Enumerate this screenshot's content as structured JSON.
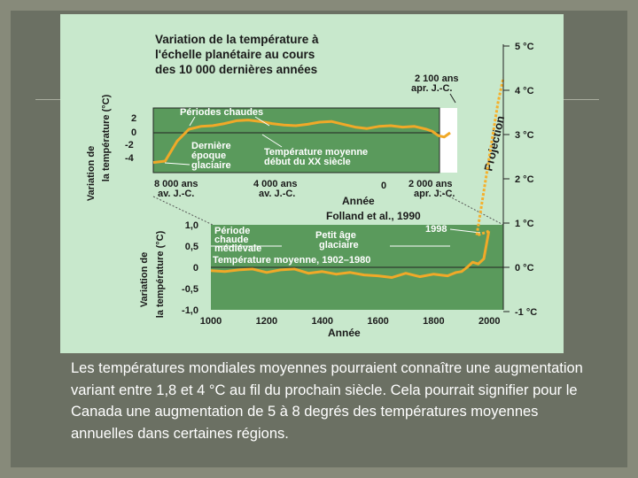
{
  "caption": "Les températures mondiales moyennes pourraient connaître une augmentation variant entre 1,8 et 4 °C au fil du prochain siècle. Cela pourrait signifier pour le Canada une augmentation de 5 à 8 degrés des températures moyennes annuelles dans certaines régions.",
  "colors": {
    "slide_bg": "#878a7a",
    "figure_bg": "#c8e8cc",
    "plot_fill": "#5a9a5c",
    "curve": "#f0a928",
    "projection": "#f5b02c",
    "text": "#1a1a1a"
  },
  "chart_data": [
    {
      "type": "line",
      "title": "Variation de la température à l'échelle planétaire au cours des 10 000 dernières années",
      "title_lines": [
        "Variation de la température à",
        "l'échelle planétaire au cours",
        "des 10 000 dernières années"
      ],
      "ylabel": "Variation de la température (°C)",
      "ylabel_lines": [
        "Variation de",
        "la température (°C)"
      ],
      "xlabel": "Année",
      "yticks": [
        "2",
        "0",
        "-2",
        "-4"
      ],
      "xticks": [
        "8 000 ans av. J.-C.",
        "4 000 ans av. J.-C.",
        "0",
        "2 000 ans apr. J.-C."
      ],
      "xtick_lines": [
        [
          "8 000 ans",
          "av. J.-C."
        ],
        [
          "4 000 ans",
          "av. J.-C."
        ],
        [
          "0"
        ],
        [
          "2 000 ans",
          "apr. J.-C."
        ]
      ],
      "ylim": [
        -5,
        3
      ],
      "x": [
        -8000,
        -7600,
        -7200,
        -6800,
        -6400,
        -6000,
        -5600,
        -5200,
        -4800,
        -4400,
        -4000,
        -3600,
        -3200,
        -2800,
        -2400,
        -2000,
        -1600,
        -1200,
        -800,
        -400,
        0,
        400,
        800,
        1200,
        1400,
        1600,
        1800,
        1900,
        2000
      ],
      "y": [
        -4.2,
        -4.0,
        -1.2,
        0.5,
        0.9,
        1.0,
        1.3,
        1.7,
        1.8,
        1.6,
        1.3,
        1.1,
        1.0,
        1.2,
        1.5,
        1.6,
        1.2,
        0.8,
        0.6,
        0.9,
        1.0,
        0.8,
        0.9,
        0.5,
        0.2,
        -0.4,
        -0.6,
        -0.3,
        0.0
      ],
      "annotations": [
        "Périodes chaudes",
        "Dernière époque glaciaire",
        "Température moyenne début du XX siècle",
        "2 100 ans apr. J.-C."
      ],
      "annotation_lines": [
        [
          "Périodes chaudes"
        ],
        [
          "Dernière",
          "époque",
          "glaciaire"
        ],
        [
          "Température moyenne",
          "début du XX siècle"
        ],
        [
          "2 100 ans",
          "apr. J.-C."
        ]
      ],
      "projection_label": "Projection",
      "right_axis_ticks": [
        "5 °C",
        "4 °C",
        "3 °C",
        "2 °C",
        "1 °C",
        "0 °C",
        "-1 °C"
      ]
    },
    {
      "type": "line",
      "source": "Folland et al., 1990",
      "ylabel": "Variation de la température (°C)",
      "ylabel_lines": [
        "Variation de",
        "la température (°C)"
      ],
      "xlabel": "Année",
      "yticks": [
        "1,0",
        "0,5",
        "0",
        "-0,5",
        "-1,0"
      ],
      "xticks": [
        "1000",
        "1200",
        "1400",
        "1600",
        "1800",
        "2000"
      ],
      "xlim": [
        1000,
        2050
      ],
      "ylim": [
        -1.0,
        1.0
      ],
      "x": [
        1000,
        1050,
        1100,
        1150,
        1200,
        1250,
        1300,
        1350,
        1400,
        1450,
        1500,
        1550,
        1600,
        1650,
        1700,
        1750,
        1800,
        1850,
        1880,
        1900,
        1920,
        1940,
        1960,
        1980,
        1998
      ],
      "y": [
        -0.08,
        -0.1,
        -0.06,
        -0.04,
        -0.12,
        -0.06,
        -0.04,
        -0.14,
        -0.1,
        -0.16,
        -0.12,
        -0.18,
        -0.2,
        -0.24,
        -0.14,
        -0.22,
        -0.16,
        -0.2,
        -0.12,
        -0.1,
        0.0,
        0.12,
        0.08,
        0.2,
        0.85
      ],
      "annotations": [
        "Période chaude médiévale",
        "Petit âge glaciaire",
        "Température moyenne, 1902–1980",
        "1998"
      ],
      "annotation_lines": [
        [
          "Période",
          "chaude",
          "médiévale"
        ],
        [
          "Petit âge",
          "glaciaire"
        ],
        [
          "Température moyenne, 1902–1980"
        ],
        [
          "1998"
        ]
      ],
      "reference_level": 0
    }
  ]
}
